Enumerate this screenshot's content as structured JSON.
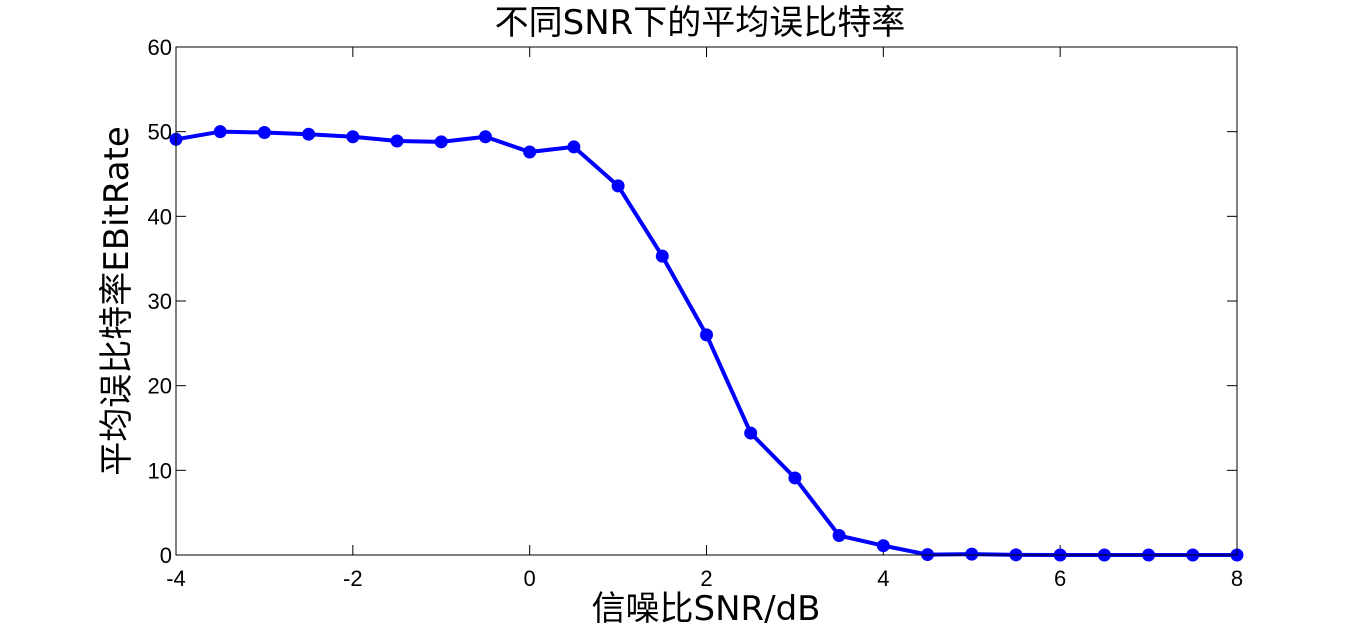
{
  "chart_data": {
    "type": "line",
    "title": "不同SNR下的平均误比特率",
    "xlabel": "信噪比SNR/dB",
    "ylabel": "平均误比特率EBitRate",
    "xlim": [
      -4,
      8
    ],
    "ylim": [
      0,
      60
    ],
    "xticks": [
      -4,
      -2,
      0,
      2,
      4,
      6,
      8
    ],
    "yticks": [
      0,
      10,
      20,
      30,
      40,
      50,
      60
    ],
    "grid": false,
    "box": true,
    "series": [
      {
        "color": "#0000ff",
        "marker": "circle",
        "x": [
          -4,
          -3.5,
          -3,
          -2.5,
          -2,
          -1.5,
          -1,
          -0.5,
          0,
          0.5,
          1,
          1.5,
          2,
          2.5,
          3,
          3.5,
          4,
          4.5,
          5,
          5.5,
          6,
          6.5,
          7,
          7.5,
          8
        ],
        "y": [
          49.1,
          50.0,
          49.9,
          49.7,
          49.4,
          48.9,
          48.8,
          49.4,
          47.6,
          48.2,
          43.6,
          35.3,
          26.0,
          14.4,
          9.1,
          2.3,
          1.1,
          0.05,
          0.1,
          0.02,
          0.0,
          0.0,
          0.0,
          0.0,
          0.0
        ]
      }
    ]
  }
}
